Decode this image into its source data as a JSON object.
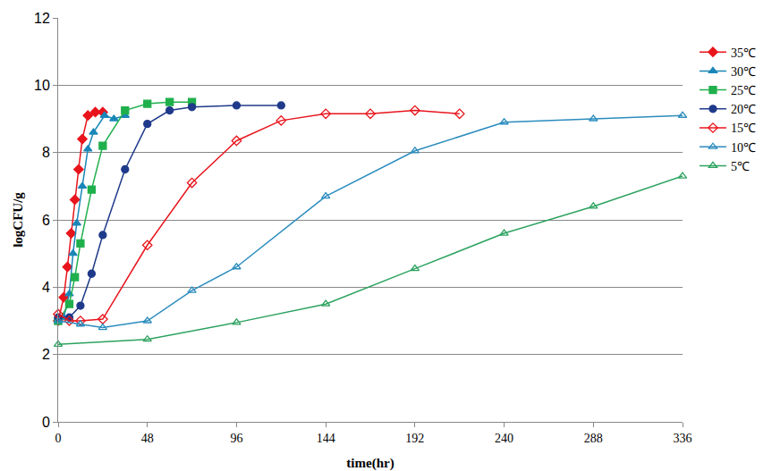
{
  "chart_data": {
    "type": "line",
    "x_label": "time(hr)",
    "y_label": "logCFU/g",
    "xlim": [
      0,
      336
    ],
    "xticks": [
      0,
      48,
      96,
      144,
      192,
      240,
      288,
      336
    ],
    "ylim": [
      0,
      12
    ],
    "yticks": [
      0,
      2,
      4,
      6,
      8,
      10,
      12
    ],
    "grid": true,
    "legend": "right",
    "series": [
      {
        "name": "35℃",
        "color": "#e8141c",
        "marker": "diamond",
        "x": [
          0,
          3,
          5,
          7,
          9,
          11,
          13,
          16,
          20,
          24
        ],
        "values": [
          3.0,
          3.7,
          4.6,
          5.6,
          6.6,
          7.5,
          8.4,
          9.1,
          9.2,
          9.2
        ]
      },
      {
        "name": "30℃",
        "color": "#1a86b8",
        "marker": "triangle-up",
        "x": [
          0,
          3,
          6,
          8,
          10,
          13,
          16,
          19,
          25,
          30,
          36
        ],
        "values": [
          3.0,
          3.1,
          3.8,
          5.0,
          5.9,
          7.0,
          8.1,
          8.6,
          9.1,
          9.0,
          9.1
        ]
      },
      {
        "name": "25℃",
        "color": "#1fb04c",
        "marker": "square",
        "x": [
          0,
          6,
          9,
          12,
          18,
          24,
          36,
          48,
          60,
          72
        ],
        "values": [
          3.0,
          3.5,
          4.3,
          5.3,
          6.9,
          8.2,
          9.25,
          9.45,
          9.5,
          9.5
        ]
      },
      {
        "name": "20℃",
        "color": "#1f3a8a",
        "marker": "circle",
        "x": [
          0,
          6,
          12,
          18,
          24,
          36,
          48,
          60,
          72,
          96,
          120
        ],
        "values": [
          3.1,
          3.1,
          3.45,
          4.4,
          5.55,
          7.5,
          8.85,
          9.25,
          9.35,
          9.4,
          9.4
        ]
      },
      {
        "name": "15℃",
        "color": "#e8141c",
        "marker": "diamond-open",
        "x": [
          0,
          6,
          12,
          24,
          48,
          72,
          96,
          120,
          144,
          168,
          192,
          216
        ],
        "values": [
          3.2,
          3.0,
          3.0,
          3.05,
          5.25,
          7.1,
          8.35,
          8.95,
          9.15,
          9.15,
          9.25,
          9.15
        ]
      },
      {
        "name": "10℃",
        "color": "#2b8cbe",
        "marker": "triangle-up-open",
        "x": [
          0,
          12,
          24,
          48,
          72,
          96,
          144,
          192,
          240,
          288,
          336
        ],
        "values": [
          3.0,
          2.9,
          2.8,
          3.0,
          3.9,
          4.6,
          6.7,
          8.05,
          8.9,
          9.0,
          9.1
        ]
      },
      {
        "name": "5℃",
        "color": "#2ca25f",
        "marker": "triangle-up-open",
        "x": [
          0,
          48,
          96,
          144,
          192,
          240,
          288,
          336
        ],
        "values": [
          2.3,
          2.45,
          2.95,
          3.5,
          4.55,
          5.6,
          6.4,
          7.3
        ]
      }
    ]
  }
}
